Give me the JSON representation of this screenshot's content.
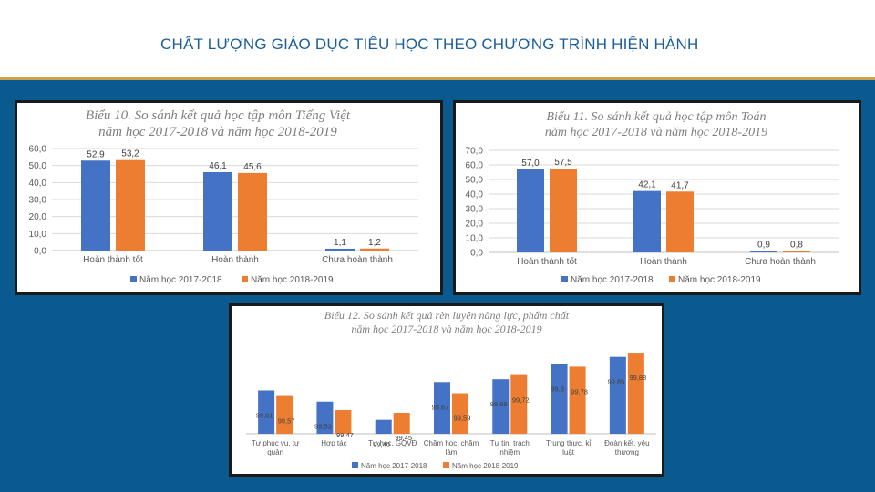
{
  "page": {
    "title": "CHẤT LƯỢNG GIÁO DỤC TIỂU HỌC THEO CHƯƠNG TRÌNH HIỆN HÀNH"
  },
  "colors": {
    "series1": "#4472c4",
    "series2": "#ed7d31",
    "header_border": "#c8a24a",
    "background": "#0a5a8f"
  },
  "chart_data": [
    {
      "type": "bar",
      "title": "Biểu 10. So sánh kết quả học tập môn Tiếng Việt",
      "subtitle": "năm học 2017-2018 và năm học 2018-2019",
      "categories": [
        "Hoàn thành tốt",
        "Hoàn thành",
        "Chưa hoàn thành"
      ],
      "series": [
        {
          "name": "Năm học 2017-2018",
          "values": [
            52.9,
            46.1,
            1.1
          ],
          "labels": [
            "52,9",
            "46,1",
            "1,1"
          ]
        },
        {
          "name": "Năm học 2018-2019",
          "values": [
            53.2,
            45.6,
            1.2
          ],
          "labels": [
            "53,2",
            "45,6",
            "1,2"
          ]
        }
      ],
      "ylim": [
        0,
        60
      ],
      "yticks": [
        "0,0",
        "10,0",
        "20,0",
        "30,0",
        "40,0",
        "50,0",
        "60,0"
      ],
      "grid": true,
      "legend": "bottom"
    },
    {
      "type": "bar",
      "title": "Biểu 11. So sánh kết quả học tập môn Toán",
      "subtitle": "năm học 2017-2018 và năm học 2018-2019",
      "categories": [
        "Hoàn thành tốt",
        "Hoàn thành",
        "Chưa hoàn thành"
      ],
      "series": [
        {
          "name": "Năm học 2017-2018",
          "values": [
            57.0,
            42.1,
            0.9
          ],
          "labels": [
            "57,0",
            "42,1",
            "0,9"
          ]
        },
        {
          "name": "Năm học 2018-2019",
          "values": [
            57.5,
            41.7,
            0.8
          ],
          "labels": [
            "57,5",
            "41,7",
            "0,8"
          ]
        }
      ],
      "ylim": [
        0,
        70
      ],
      "yticks": [
        "0,0",
        "10,0",
        "20,0",
        "30,0",
        "40,0",
        "50,0",
        "60,0",
        "70,0"
      ],
      "grid": true,
      "legend": "bottom"
    },
    {
      "type": "bar",
      "title": "Biểu 12. So sánh kết quả rèn luyện năng lực, phẩm chất",
      "subtitle": "năm học 2017-2018 và năm học 2018-2019",
      "categories": [
        "Tự phục vụ, tự quản",
        "Hợp tác",
        "Tự học, GQVĐ",
        "Chăm học, chăm làm",
        "Tự tin, trách nhiệm",
        "Trung thực, kỉ luật",
        "Đoàn kết, yêu thương"
      ],
      "series": [
        {
          "name": "Năm học 2017-2018",
          "values": [
            99.61,
            99.53,
            99.4,
            99.67,
            99.69,
            99.8,
            99.85
          ],
          "labels": [
            "99,61",
            "99,53",
            "99,40",
            "99,67",
            "99,69",
            "99,8",
            "99,85"
          ]
        },
        {
          "name": "Năm học 2018-2019",
          "values": [
            99.57,
            99.47,
            99.45,
            99.59,
            99.72,
            99.78,
            99.88
          ],
          "labels": [
            "99,57",
            "99,47",
            "99,45",
            "99,59",
            "99,72",
            "99,78",
            "99,88"
          ]
        }
      ],
      "ylim": [
        99.3,
        99.9
      ],
      "grid": false,
      "legend": "bottom"
    }
  ]
}
